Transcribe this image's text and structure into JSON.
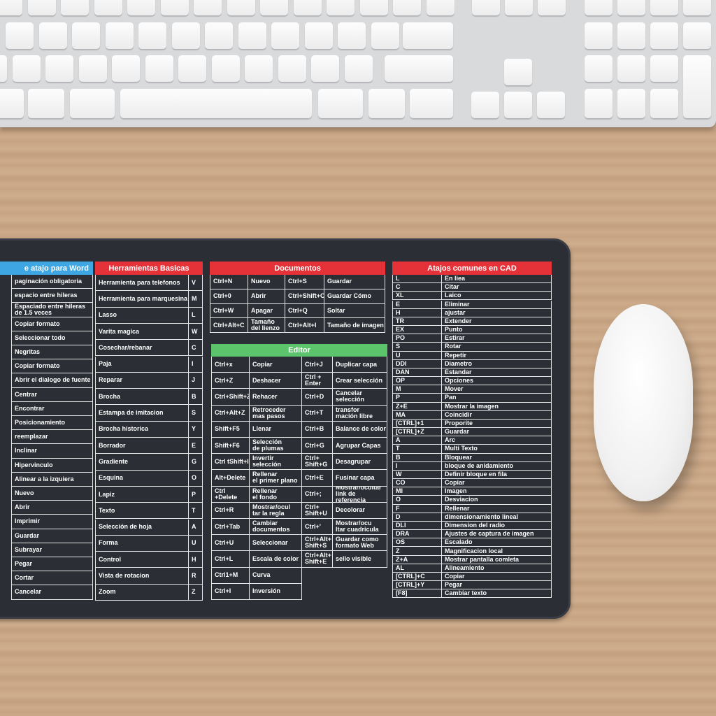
{
  "word": {
    "title": "e atajo para Word",
    "rows": [
      "paginación obligatoria",
      "espacio entre hileras",
      "Espaciado entre hileras\nde 1.5 veces",
      "Copiar formato",
      "Seleccionar todo",
      "Negritas",
      "Copiar formato",
      "Abrir el dialogo de fuente",
      "Centrar",
      "Encontrar",
      "Posicionamiento",
      "reemplazar",
      "Inclinar",
      "Hipervinculo",
      "Alinear a la izquiera",
      "Nuevo",
      "Abrir",
      "Imprimir",
      "Guardar",
      "Subrayar",
      "Pegar",
      "Cortar",
      "Cancelar"
    ]
  },
  "herramientas": {
    "title": "Herramientas Basicas",
    "rows": [
      [
        "Herramienta para telefonos",
        "V"
      ],
      [
        "Herramienta para marquesina",
        "M"
      ],
      [
        "Lasso",
        "L"
      ],
      [
        "Varita magica",
        "W"
      ],
      [
        "Cosechar/rebanar",
        "C"
      ],
      [
        "Paja",
        "I"
      ],
      [
        "Reparar",
        "J"
      ],
      [
        "Brocha",
        "B"
      ],
      [
        "Estampa de imitacion",
        "S"
      ],
      [
        "Brocha historica",
        "Y"
      ],
      [
        "Borrador",
        "E"
      ],
      [
        "Gradiente",
        "G"
      ],
      [
        "Esquina",
        "O"
      ],
      [
        "Lapiz",
        "P"
      ],
      [
        "Texto",
        "T"
      ],
      [
        "Selección de hoja",
        "A"
      ],
      [
        "Forma",
        "U"
      ],
      [
        "Control",
        "H"
      ],
      [
        "Vista de rotacion",
        "R"
      ],
      [
        "Zoom",
        "Z"
      ]
    ]
  },
  "documentos": {
    "title": "Documentos",
    "rows": [
      [
        "Ctrl+N",
        "Nuevo",
        "Ctrl+S",
        "Guardar"
      ],
      [
        "Ctrl+0",
        "Abrir",
        "Ctrl+Shift+C",
        "Guardar Cómo"
      ],
      [
        "Ctrl+W",
        "Apagar",
        "Ctrl+Q",
        "Soltar"
      ],
      [
        "Ctrl+Alt+C",
        "Tamaño\ndel lienzo",
        "Ctrl+Alt+I",
        "Tamaño de imagen"
      ]
    ]
  },
  "editor": {
    "title": "Editor",
    "rows": [
      [
        "Ctrl+x",
        "Copiar",
        "Ctrl+J",
        "Duplicar capa"
      ],
      [
        "Ctrl+Z",
        "Deshacer",
        "Ctrl +\nEnter",
        "Crear selección"
      ],
      [
        "Ctrl+Shift+Z",
        "Rehacer",
        "Ctrl+D",
        "Cancelar\nselección"
      ],
      [
        "Ctrl+Alt+Z",
        "Retroceder\nmas pasos",
        "Ctrl+T",
        "transfor\nmación libre"
      ],
      [
        "Shift+F5",
        "Llenar",
        "Ctrl+B",
        "Balance de color"
      ],
      [
        "Shift+F6",
        "Selección\nde plumas",
        "Ctrl+G",
        "Agrupar Capas"
      ],
      [
        "Ctrl tShift+I",
        "Invertir\nselección",
        "Ctrl+\nShift+G",
        "Desagrupar"
      ],
      [
        "Alt+Delete",
        "Rellenar\nel primer plano",
        "Ctrl+E",
        "Fusinar capa"
      ],
      [
        "Ctrl +Delete",
        "Rellenar\nel fondo",
        "Ctrl+;",
        "Mostrar/ocultar\nlink de referencia"
      ],
      [
        "Ctrl+R",
        "Mostrar/ocul\ntar la regla",
        "Ctrl+\nShift+U",
        "Decolorar"
      ],
      [
        "Ctrl+Tab",
        "Cambiar\ndocumentos",
        "Ctrl+'",
        "Mostrar/ocu\nltar cuadricula"
      ],
      [
        "Ctrl+U",
        "Seleccionar",
        "Ctrl+Alt+\nShift+S",
        "Guardar como\nformato Web"
      ],
      [
        "Ctrl+L",
        "Escala de color",
        "Ctrl+Alt+\nShift+E",
        "sello visible"
      ],
      [
        "Ctrl1+M",
        "Curva"
      ],
      [
        "Ctrl+I",
        "Inversión"
      ]
    ]
  },
  "cad": {
    "title": "Atajos comunes en CAD",
    "rows": [
      [
        "L",
        "En liea"
      ],
      [
        "C",
        "Citar"
      ],
      [
        "XL",
        "Laico"
      ],
      [
        "E",
        "Eliminar"
      ],
      [
        "H",
        "ajustar"
      ],
      [
        "TR",
        "Extender"
      ],
      [
        "EX",
        "Punto"
      ],
      [
        "PO",
        "Estirar"
      ],
      [
        "S",
        "Rotar"
      ],
      [
        "U",
        "Repetir"
      ],
      [
        "DDI",
        "Diametro"
      ],
      [
        "DAN",
        "Estandar"
      ],
      [
        "OP",
        "Opciones"
      ],
      [
        "M",
        "Mover"
      ],
      [
        "P",
        "Pan"
      ],
      [
        "Z+E",
        "Mostrar la imagen"
      ],
      [
        "MA",
        "Coincidir"
      ],
      [
        "[CTRL]+1",
        "Proporite"
      ],
      [
        "[CTRL]+Z",
        "Guardar"
      ],
      [
        "A",
        "Arc"
      ],
      [
        "T",
        "Multi Texto"
      ],
      [
        "B",
        "Bloquear"
      ],
      [
        "I",
        "bloque de anidamiento"
      ],
      [
        "W",
        "Definir bloque en fila"
      ],
      [
        "CO",
        "Copiar"
      ],
      [
        "MI",
        "Imagen"
      ],
      [
        "O",
        "Desviacion"
      ],
      [
        "F",
        "Rellenar"
      ],
      [
        "D",
        "dimensionamiento lineal"
      ],
      [
        "DLI",
        "Dimension del radio"
      ],
      [
        "DRA",
        "Ajustes de captura de imagen"
      ],
      [
        "OS",
        "Escalado"
      ],
      [
        "Z",
        "Magnificacion local"
      ],
      [
        "Z+A",
        "Mostrar pantalla comleta"
      ],
      [
        "AL",
        "Alineamiento"
      ],
      [
        "[CTRL]+C",
        "Copiar"
      ],
      [
        "[CTRL]+Y",
        "Pegar"
      ],
      [
        "[F8]",
        "Cambiar texto"
      ]
    ]
  }
}
